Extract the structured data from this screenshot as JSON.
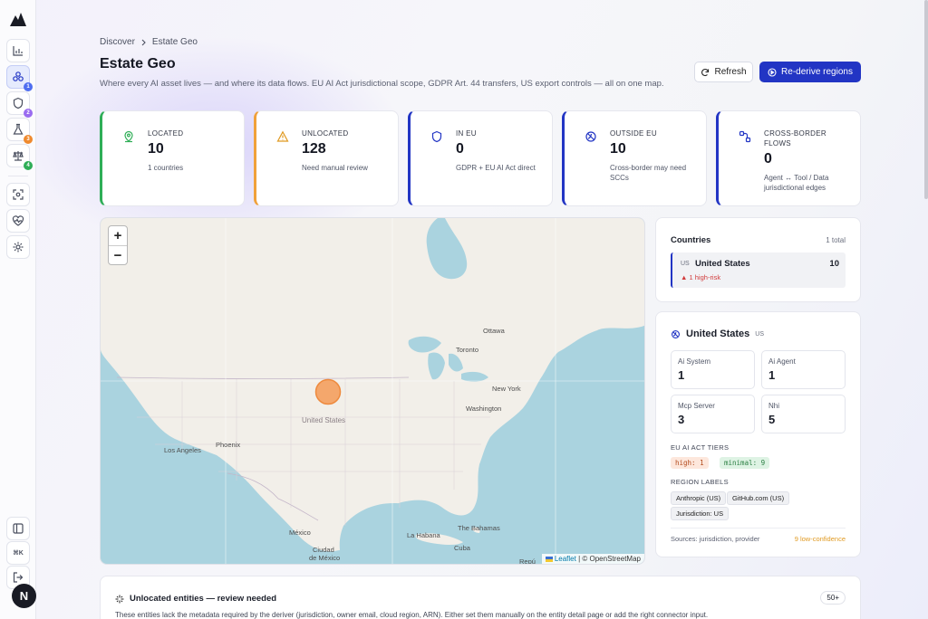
{
  "app": {
    "logo_icon": "mountain-logo-icon",
    "avatar_initial": "N"
  },
  "sidebar": {
    "items": [
      {
        "name": "analytics",
        "icon": "bar-chart-icon",
        "active": false,
        "badge": ""
      },
      {
        "name": "estate",
        "icon": "nodes-icon",
        "active": true,
        "badge": "1",
        "badge_color": "#4f6ef0"
      },
      {
        "name": "shield",
        "icon": "shield-icon",
        "active": false,
        "badge": "2",
        "badge_color": "#9a6cf0"
      },
      {
        "name": "lab",
        "icon": "flask-icon",
        "active": false,
        "badge": "3",
        "badge_color": "#ef8a2e"
      },
      {
        "name": "compliance",
        "icon": "scale-icon",
        "active": false,
        "badge": "4",
        "badge_color": "#2fae57"
      },
      {
        "name": "scan",
        "icon": "scan-icon",
        "active": false,
        "badge": ""
      },
      {
        "name": "health",
        "icon": "heart-pulse-icon",
        "active": false,
        "badge": ""
      },
      {
        "name": "settings",
        "icon": "gear-icon",
        "active": false,
        "badge": ""
      }
    ],
    "bottom": {
      "kbd": "⌘K"
    }
  },
  "header": {
    "breadcrumb": [
      "Discover",
      "Estate Geo"
    ],
    "title": "Estate Geo",
    "subtitle": "Where every AI asset lives — and where its data flows. EU AI Act jurisdictional scope, GDPR Art. 44 transfers, US export controls — all on one map.",
    "refresh_label": "Refresh",
    "rederive_label": "Re-derive regions"
  },
  "stats": [
    {
      "label": "LOCATED",
      "value": "10",
      "sub": "1 countries",
      "color": "#2fae57"
    },
    {
      "label": "UNLOCATED",
      "value": "128",
      "sub": "Need manual review",
      "color": "#f0a13a"
    },
    {
      "label": "IN EU",
      "value": "0",
      "sub": "GDPR + EU AI Act direct",
      "color": "#2235c4"
    },
    {
      "label": "OUTSIDE EU",
      "value": "10",
      "sub": "Cross-border may need SCCs",
      "color": "#2235c4"
    },
    {
      "label": "CROSS-BORDER FLOWS",
      "value": "0",
      "sub": "Agent ↔ Tool / Data jurisdictional edges",
      "color": "#2235c4"
    }
  ],
  "map": {
    "zoom_in": "+",
    "zoom_out": "−",
    "labels": {
      "ottawa": "Ottawa",
      "toronto": "Toronto",
      "new_york": "New York",
      "washington": "Washington",
      "united_states": "United States",
      "los_angeles": "Los Angeles",
      "phoenix": "Phoenix",
      "mexico": "México",
      "ciudad": "Ciudad",
      "de_mexico": "de México",
      "bahamas": "The Bahamas",
      "la_habana": "La Habana",
      "cuba": "Cuba",
      "rep": "Repú"
    },
    "attribution_leaflet": "Leaflet",
    "attribution_rest": "| © OpenStreetMap"
  },
  "countries": {
    "title": "Countries",
    "total": "1 total",
    "items": [
      {
        "code": "US",
        "name": "United States",
        "count": "10",
        "risk": "▲ 1 high-risk"
      }
    ]
  },
  "detail": {
    "country": "United States",
    "code": "US",
    "tiles": [
      {
        "label": "Ai System",
        "value": "1"
      },
      {
        "label": "Ai Agent",
        "value": "1"
      },
      {
        "label": "Mcp Server",
        "value": "3"
      },
      {
        "label": "Nhi",
        "value": "5"
      }
    ],
    "tiers_title": "EU AI ACT TIERS",
    "tiers": [
      "high: 1",
      "minimal: 9"
    ],
    "region_title": "REGION LABELS",
    "region_labels": [
      "Anthropic (US)",
      "GitHub.com (US)",
      "Jurisdiction: US"
    ],
    "sources": "Sources: jurisdiction, provider",
    "low_confidence": "9 low-confidence"
  },
  "unlocated": {
    "title": "Unlocated entities — review needed",
    "count": "50+",
    "desc": "These entities lack the metadata required by the deriver (jurisdiction, owner email, cloud region, ARN). Either set them manually on the entity detail page or add the right connector input."
  }
}
